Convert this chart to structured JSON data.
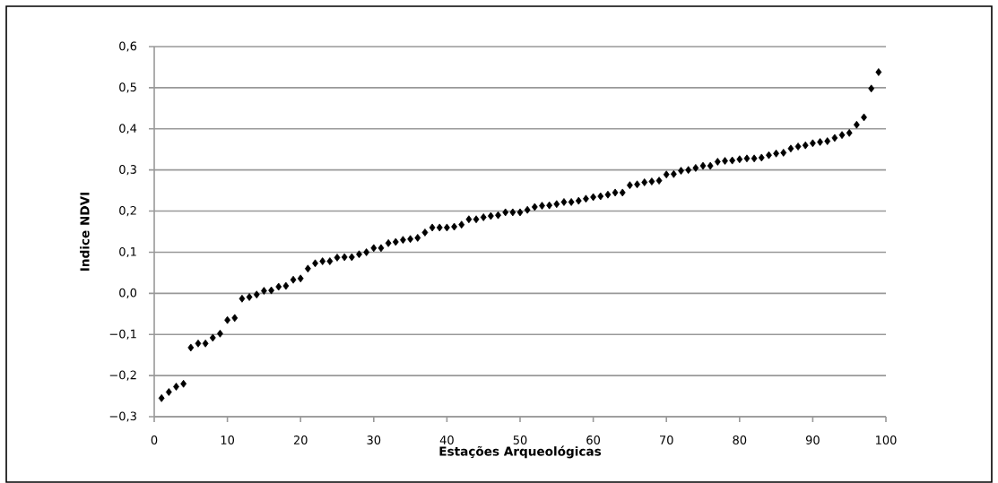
{
  "chart_data": {
    "type": "scatter",
    "xlabel": "Estações Arqueológicas",
    "ylabel": "Indice NDVI",
    "x": [
      1,
      2,
      3,
      4,
      5,
      6,
      7,
      8,
      9,
      10,
      11,
      12,
      13,
      14,
      15,
      16,
      17,
      18,
      19,
      20,
      21,
      22,
      23,
      24,
      25,
      26,
      27,
      28,
      29,
      30,
      31,
      32,
      33,
      34,
      35,
      36,
      37,
      38,
      39,
      40,
      41,
      42,
      43,
      44,
      45,
      46,
      47,
      48,
      49,
      50,
      51,
      52,
      53,
      54,
      55,
      56,
      57,
      58,
      59,
      60,
      61,
      62,
      63,
      64,
      65,
      66,
      67,
      68,
      69,
      70,
      71,
      72,
      73,
      74,
      75,
      76,
      77,
      78,
      79,
      80,
      81,
      82,
      83,
      84,
      85,
      86,
      87,
      88,
      89,
      90,
      91,
      92,
      93,
      94,
      95,
      96,
      97,
      98,
      99
    ],
    "values": [
      -0.255,
      -0.24,
      -0.227,
      -0.22,
      -0.132,
      -0.122,
      -0.122,
      -0.108,
      -0.098,
      -0.065,
      -0.06,
      -0.013,
      -0.009,
      -0.003,
      0.006,
      0.007,
      0.016,
      0.018,
      0.033,
      0.036,
      0.06,
      0.073,
      0.078,
      0.078,
      0.087,
      0.088,
      0.088,
      0.095,
      0.1,
      0.11,
      0.11,
      0.122,
      0.125,
      0.13,
      0.132,
      0.135,
      0.148,
      0.16,
      0.16,
      0.16,
      0.162,
      0.167,
      0.18,
      0.18,
      0.185,
      0.188,
      0.19,
      0.197,
      0.197,
      0.197,
      0.203,
      0.21,
      0.213,
      0.214,
      0.217,
      0.222,
      0.222,
      0.225,
      0.23,
      0.234,
      0.236,
      0.24,
      0.245,
      0.245,
      0.263,
      0.265,
      0.27,
      0.272,
      0.274,
      0.289,
      0.29,
      0.298,
      0.3,
      0.305,
      0.31,
      0.31,
      0.32,
      0.322,
      0.323,
      0.326,
      0.328,
      0.328,
      0.33,
      0.336,
      0.34,
      0.342,
      0.352,
      0.357,
      0.36,
      0.365,
      0.368,
      0.37,
      0.378,
      0.385,
      0.39,
      0.41,
      0.428,
      0.498,
      0.538
    ],
    "color": "#000000",
    "marker": "diamond",
    "grid": "y",
    "xlim": [
      0,
      100
    ],
    "xticks": [
      0,
      10,
      20,
      30,
      40,
      50,
      60,
      70,
      80,
      90,
      100
    ],
    "ylim": [
      -0.3,
      0.6
    ],
    "yticks": [
      {
        "value": -0.3,
        "label": "−0,3"
      },
      {
        "value": -0.2,
        "label": "−0,2"
      },
      {
        "value": -0.1,
        "label": "−0,1"
      },
      {
        "value": 0.0,
        "label": "0,0"
      },
      {
        "value": 0.1,
        "label": "0,1"
      },
      {
        "value": 0.2,
        "label": "0,2"
      },
      {
        "value": 0.3,
        "label": "0,3"
      },
      {
        "value": 0.4,
        "label": "0,4"
      },
      {
        "value": 0.5,
        "label": "0,5"
      },
      {
        "value": 0.6,
        "label": "0,6"
      }
    ]
  }
}
